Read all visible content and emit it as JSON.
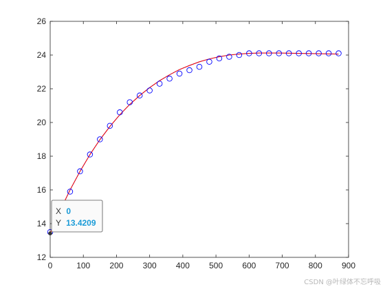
{
  "chart_data": {
    "type": "scatter",
    "x": [
      0,
      30,
      60,
      90,
      120,
      150,
      180,
      210,
      240,
      270,
      300,
      330,
      360,
      390,
      420,
      450,
      480,
      510,
      540,
      570,
      600,
      630,
      660,
      690,
      720,
      750,
      780,
      810,
      840,
      870
    ],
    "series": [
      {
        "style": "markers",
        "marker": "circle-open",
        "color": "#0000ff",
        "values": [
          13.5,
          14.7,
          15.9,
          17.1,
          18.1,
          19.0,
          19.8,
          20.6,
          21.2,
          21.6,
          21.9,
          22.3,
          22.6,
          22.9,
          23.1,
          23.3,
          23.6,
          23.8,
          23.9,
          24.0,
          24.1,
          24.1,
          24.1,
          24.1,
          24.1,
          24.1,
          24.1,
          24.1,
          24.1,
          24.1
        ]
      },
      {
        "style": "line",
        "color": "#ff0000",
        "values": [
          13.42,
          14.78,
          16.0,
          17.1,
          18.1,
          18.98,
          19.76,
          20.46,
          21.07,
          21.6,
          22.07,
          22.48,
          22.83,
          23.14,
          23.38,
          23.6,
          23.77,
          23.9,
          24.0,
          24.06,
          24.1,
          24.12,
          24.12,
          24.12,
          24.11,
          24.1,
          24.09,
          24.08,
          24.07,
          24.06
        ]
      }
    ],
    "xlim": [
      0,
      900
    ],
    "ylim": [
      12,
      26
    ],
    "xticks": [
      "0",
      "100",
      "200",
      "300",
      "400",
      "500",
      "600",
      "700",
      "800",
      "900"
    ],
    "yticks": [
      "12",
      "14",
      "16",
      "18",
      "20",
      "22",
      "24",
      "26"
    ],
    "grid": false,
    "datatip": {
      "x_label": "X",
      "x_value": "0",
      "y_label": "Y",
      "y_value": "13.4209",
      "point": [
        0,
        13.4209
      ]
    }
  },
  "watermark": "CSDN @叶绿体不忘呼吸"
}
